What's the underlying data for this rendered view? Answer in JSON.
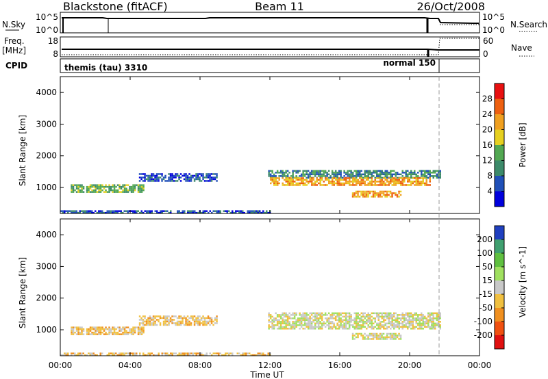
{
  "header": {
    "title_left": "Blackstone (fitACF)",
    "title_center": "Beam 11",
    "title_right": "26/Oct/2008"
  },
  "top_panels": {
    "nsky_label": "N.Sky",
    "nsky_ticks": [
      "10^5",
      "10^0"
    ],
    "nsearch_label": "N.Search",
    "nsearch_ticks": [
      "10^5",
      "10^0"
    ],
    "freq_label": "Freq.",
    "freq_unit": "[MHz]",
    "freq_ticks": [
      "18",
      "8"
    ],
    "nave_label": "Nave",
    "nave_ticks": [
      "60",
      "0"
    ],
    "cpid_label": "CPID",
    "cpid_segments": [
      "themis (tau) 3310",
      "normal 150"
    ]
  },
  "chart_data": [
    {
      "type": "heatmap",
      "panel": "power",
      "ylabel": "Slant Range [km]",
      "ylim": [
        180,
        4500
      ],
      "y_ticks": [
        "4000",
        "3000",
        "2000",
        "1000"
      ],
      "colorbar_label": "Power [dB]",
      "colorbar_ticks": [
        "28",
        "24",
        "20",
        "16",
        "12",
        "8",
        "4"
      ],
      "colorbar_colors": [
        "#0000dd",
        "#2050b8",
        "#3c8a6a",
        "#52a852",
        "#e6d020",
        "#f0a020",
        "#ee6010",
        "#e81010"
      ],
      "regions": [
        {
          "t": [
            0.6,
            4.8
          ],
          "r": [
            850,
            1100
          ],
          "value": 14
        },
        {
          "t": [
            4.5,
            9.0
          ],
          "r": [
            1200,
            1450
          ],
          "value": 8
        },
        {
          "t": [
            11.9,
            21.8
          ],
          "r": [
            1320,
            1550
          ],
          "value": 10
        },
        {
          "t": [
            12.0,
            21.2
          ],
          "r": [
            1050,
            1320
          ],
          "value": 24
        },
        {
          "t": [
            16.7,
            19.5
          ],
          "r": [
            700,
            900
          ],
          "value": 22
        },
        {
          "t": [
            0.0,
            12.0
          ],
          "r": [
            200,
            280
          ],
          "value": 6
        }
      ]
    },
    {
      "type": "heatmap",
      "panel": "velocity",
      "ylabel": "Slant Range [km]",
      "xlabel": "Time UT",
      "ylim": [
        180,
        4500
      ],
      "y_ticks": [
        "4000",
        "3000",
        "2000",
        "1000"
      ],
      "x_ticks": [
        "00:00",
        "04:00",
        "08:00",
        "12:00",
        "16:00",
        "20:00",
        "00:00"
      ],
      "colorbar_label": "Velocity [m s^-1]",
      "colorbar_ticks": [
        "200",
        "100",
        "50",
        "15",
        "-15",
        "-50",
        "-100",
        "-200"
      ],
      "colorbar_colors": [
        "#2040c0",
        "#40a070",
        "#60c040",
        "#a0e060",
        "#c8c8c8",
        "#f0c040",
        "#f09020",
        "#f05010",
        "#e01010"
      ],
      "regions": [
        {
          "t": [
            0.6,
            4.8
          ],
          "r": [
            850,
            1100
          ],
          "value": -40
        },
        {
          "t": [
            4.5,
            9.0
          ],
          "r": [
            1150,
            1450
          ],
          "value": -30
        },
        {
          "t": [
            11.9,
            21.8
          ],
          "r": [
            1050,
            1550
          ],
          "value": 0
        },
        {
          "t": [
            16.7,
            19.5
          ],
          "r": [
            700,
            900
          ],
          "value": 0
        },
        {
          "t": [
            0.0,
            12.0
          ],
          "r": [
            200,
            280
          ],
          "value": -35
        }
      ]
    }
  ]
}
